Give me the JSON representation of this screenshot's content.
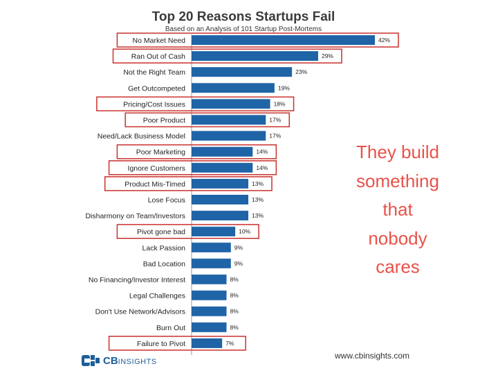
{
  "chart_data": {
    "type": "bar",
    "orientation": "horizontal",
    "title": "Top 20 Reasons Startups Fail",
    "subtitle": "Based on an Analysis of 101 Startup Post-Mortems",
    "categories": [
      "No Market Need",
      "Ran Out of Cash",
      "Not the Right Team",
      "Get Outcompeted",
      "Pricing/Cost Issues",
      "Poor Product",
      "Need/Lack Business Model",
      "Poor Marketing",
      "Ignore Customers",
      "Product Mis-Timed",
      "Lose Focus",
      "Disharmony on Team/Investors",
      "Pivot gone bad",
      "Lack Passion",
      "Bad Location",
      "No Financing/Investor Interest",
      "Legal Challenges",
      "Don't Use Network/Advisors",
      "Burn Out",
      "Failure to Pivot"
    ],
    "values": [
      42,
      29,
      23,
      19,
      18,
      17,
      17,
      14,
      14,
      13,
      13,
      13,
      10,
      9,
      9,
      8,
      8,
      8,
      8,
      7
    ],
    "value_labels": [
      "42%",
      "29%",
      "23%",
      "19%",
      "18%",
      "17%",
      "17%",
      "14%",
      "14%",
      "13%",
      "13%",
      "13%",
      "10%",
      "9%",
      "9%",
      "8%",
      "8%",
      "8%",
      "8%",
      "7%"
    ],
    "highlighted": [
      true,
      true,
      false,
      false,
      true,
      true,
      false,
      true,
      true,
      true,
      false,
      false,
      true,
      false,
      false,
      false,
      false,
      false,
      false,
      true
    ],
    "xlim": [
      0,
      42
    ],
    "grid": false,
    "legend": "none"
  },
  "colors": {
    "bar": "#1f64a6",
    "highlight_box": "#c9302c",
    "callout": "#e8524a"
  },
  "callout_lines": [
    "They build",
    "something",
    "that",
    "nobody",
    "cares"
  ],
  "logo": {
    "cb": "CB",
    "insights": "INSIGHTS"
  },
  "website": "www.cbinsights.com"
}
